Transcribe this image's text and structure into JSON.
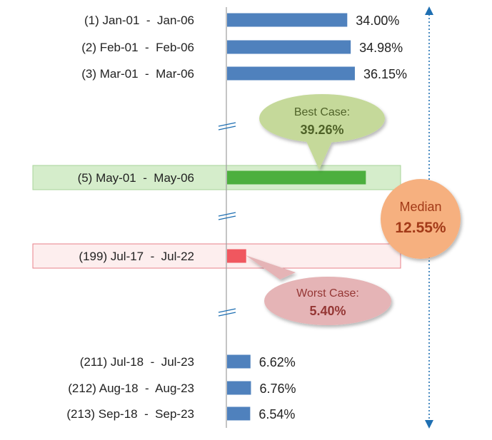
{
  "chart_data": {
    "type": "bar",
    "orientation": "horizontal",
    "axis_break_marker": "//",
    "rows": [
      {
        "label": "(1) Jan-01  -  Jan-06",
        "value": 34.0,
        "value_label": "34.00%",
        "kind": "normal"
      },
      {
        "label": "(2) Feb-01  -  Feb-06",
        "value": 34.98,
        "value_label": "34.98%",
        "kind": "normal"
      },
      {
        "label": "(3) Mar-01  -  Mar-06",
        "value": 36.15,
        "value_label": "36.15%",
        "kind": "normal"
      },
      {
        "label": "(5) May-01  -  May-06",
        "value": 39.26,
        "value_label": "",
        "kind": "best"
      },
      {
        "label": "(199) Jul-17  -  Jul-22",
        "value": 5.4,
        "value_label": "",
        "kind": "worst"
      },
      {
        "label": "(211) Jul-18  -  Jul-23",
        "value": 6.62,
        "value_label": "6.62%",
        "kind": "normal"
      },
      {
        "label": "(212) Aug-18  -  Aug-23",
        "value": 6.76,
        "value_label": "6.76%",
        "kind": "normal"
      },
      {
        "label": "(213) Sep-18  -  Sep-23",
        "value": 6.54,
        "value_label": "6.54%",
        "kind": "normal"
      }
    ],
    "callouts": {
      "best": {
        "title": "Best Case:",
        "value": "39.26%"
      },
      "worst": {
        "title": "Worst Case:",
        "value": "5.40%"
      },
      "median": {
        "title": "Median",
        "value": "12.55%"
      }
    },
    "colors": {
      "normal_bar": "#4f81bd",
      "best_bar": "#4caf3e",
      "best_band": "#d5edcb",
      "best_bubble": "#c5d99a",
      "best_text": "#4f6228",
      "worst_bar": "#f0575f",
      "worst_band": "#fdeeee",
      "worst_bubble": "#e5b4b6",
      "worst_text": "#953735",
      "median_circle": "#f6b07f",
      "median_text": "#a33a18",
      "range_arrow": "#1f6fb2",
      "axis": "#9e9e9e"
    }
  }
}
